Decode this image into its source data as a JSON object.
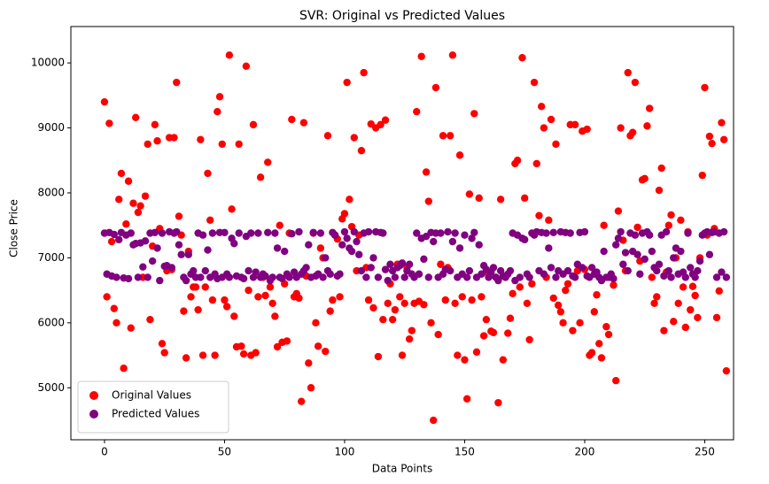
{
  "chart_data": {
    "type": "scatter",
    "title": "SVR: Original vs Predicted Values",
    "x_label": "Data Points",
    "y_label": "Close Price",
    "x": [
      0,
      1,
      2,
      3,
      4,
      5,
      6,
      7,
      8,
      9,
      10,
      11,
      12,
      13,
      14,
      15,
      16,
      17,
      18,
      19,
      20,
      21,
      22,
      23,
      24,
      25,
      26,
      27,
      28,
      29,
      30,
      31,
      32,
      33,
      34,
      35,
      36,
      37,
      38,
      39,
      40,
      41,
      42,
      43,
      44,
      45,
      46,
      47,
      48,
      49,
      50,
      51,
      52,
      53,
      54,
      55,
      56,
      57,
      58,
      59,
      60,
      61,
      62,
      63,
      64,
      65,
      66,
      67,
      68,
      69,
      70,
      71,
      72,
      73,
      74,
      75,
      76,
      77,
      78,
      79,
      80,
      81,
      82,
      83,
      84,
      85,
      86,
      87,
      88,
      89,
      90,
      91,
      92,
      93,
      94,
      95,
      96,
      97,
      98,
      99,
      100,
      101,
      102,
      103,
      104,
      105,
      106,
      107,
      108,
      109,
      110,
      111,
      112,
      113,
      114,
      115,
      116,
      117,
      118,
      119,
      120,
      121,
      122,
      123,
      124,
      125,
      126,
      127,
      128,
      129,
      130,
      131,
      132,
      133,
      134,
      135,
      136,
      137,
      138,
      139,
      140,
      141,
      142,
      143,
      144,
      145,
      146,
      147,
      148,
      149,
      150,
      151,
      152,
      153,
      154,
      155,
      156,
      157,
      158,
      159,
      160,
      161,
      162,
      163,
      164,
      165,
      166,
      167,
      168,
      169,
      170,
      171,
      172,
      173,
      174,
      175,
      176,
      177,
      178,
      179,
      180,
      181,
      182,
      183,
      184,
      185,
      186,
      187,
      188,
      189,
      190,
      191,
      192,
      193,
      194,
      195,
      196,
      197,
      198,
      199,
      200,
      201,
      202,
      203,
      204,
      205,
      206,
      207,
      208,
      209,
      210,
      211,
      212,
      213,
      214,
      215,
      216,
      217,
      218,
      219,
      220,
      221,
      222,
      223,
      224,
      225,
      226,
      227,
      228,
      229,
      230,
      231,
      232,
      233,
      234,
      235,
      236,
      237,
      238,
      239,
      240,
      241,
      242,
      243,
      244,
      245,
      246,
      247,
      248,
      249,
      250,
      251,
      252,
      253,
      254,
      255,
      256,
      257,
      258,
      259
    ],
    "series": [
      {
        "name": "Original Values",
        "color": "#ff0000",
        "values": [
          9400,
          6400,
          9070,
          7250,
          6220,
          6000,
          7900,
          8300,
          5300,
          7520,
          8180,
          5920,
          7840,
          9160,
          7700,
          7800,
          6700,
          7950,
          8750,
          6050,
          7180,
          9050,
          8800,
          7450,
          5680,
          5540,
          6800,
          8850,
          6820,
          8850,
          9700,
          7640,
          7350,
          6180,
          5460,
          7100,
          6400,
          6550,
          6550,
          6200,
          8820,
          5500,
          6550,
          8300,
          7580,
          6350,
          5500,
          9250,
          9480,
          8750,
          6350,
          6250,
          10120,
          7750,
          6100,
          5630,
          8750,
          5640,
          5520,
          9950,
          6500,
          5500,
          9050,
          5540,
          6400,
          8240,
          6700,
          6420,
          8470,
          6550,
          6300,
          6100,
          5630,
          7500,
          5700,
          6600,
          5720,
          7380,
          9130,
          6400,
          6450,
          6380,
          4790,
          9080,
          6720,
          5380,
          5000,
          7380,
          6000,
          5640,
          7150,
          7000,
          5560,
          8880,
          6180,
          6350,
          7350,
          7290,
          6400,
          7600,
          7680,
          9700,
          7900,
          7480,
          8850,
          6800,
          7350,
          8650,
          9850,
          6850,
          6350,
          9060,
          6230,
          9000,
          5480,
          9050,
          6050,
          9120,
          6300,
          6600,
          6050,
          6200,
          6900,
          6400,
          5500,
          6300,
          6850,
          5750,
          5880,
          6300,
          9250,
          6330,
          10100,
          6280,
          8320,
          7870,
          6000,
          4500,
          9620,
          5820,
          6900,
          8880,
          6350,
          6850,
          8880,
          10120,
          6300,
          5500,
          8580,
          6400,
          5430,
          4830,
          7980,
          6350,
          9220,
          5550,
          7920,
          6400,
          5800,
          6050,
          6750,
          5870,
          5850,
          6700,
          4770,
          7900,
          5430,
          6700,
          5840,
          6070,
          6450,
          8450,
          8500,
          6550,
          10080,
          7920,
          6300,
          5740,
          6600,
          9700,
          8450,
          7650,
          9330,
          9000,
          6700,
          7580,
          9130,
          6380,
          8750,
          6270,
          6170,
          6000,
          6500,
          6600,
          9050,
          5880,
          9050,
          6800,
          6000,
          8950,
          6820,
          8980,
          5500,
          5540,
          6170,
          6430,
          5680,
          5460,
          7500,
          5940,
          5820,
          6700,
          6580,
          5110,
          7720,
          9000,
          7270,
          6800,
          9850,
          8880,
          8930,
          9700,
          7470,
          6950,
          8200,
          8220,
          9030,
          9300,
          6700,
          6300,
          6400,
          8040,
          8380,
          5880,
          6780,
          7500,
          7660,
          6020,
          7000,
          6300,
          7580,
          6550,
          5930,
          7400,
          6200,
          6560,
          6420,
          6080,
          7000,
          8270,
          9620,
          7350,
          8870,
          8760,
          7450,
          6080,
          6490,
          9080,
          8820,
          5260
        ]
      },
      {
        "name": "Predicted Values",
        "color": "#800080",
        "values": [
          7380,
          6750,
          7390,
          6720,
          7360,
          6700,
          7280,
          7390,
          6690,
          7350,
          6680,
          7380,
          7200,
          7220,
          6700,
          7230,
          6860,
          7260,
          6700,
          7380,
          6950,
          7390,
          7150,
          6650,
          7380,
          6870,
          6880,
          7400,
          6850,
          7380,
          7400,
          7200,
          7050,
          6700,
          6650,
          7050,
          6750,
          6800,
          6700,
          7380,
          6700,
          7350,
          6800,
          7120,
          6700,
          7380,
          6750,
          6680,
          7390,
          6700,
          7390,
          6750,
          6700,
          7300,
          7220,
          6720,
          7380,
          6700,
          6680,
          7330,
          6800,
          7380,
          6700,
          6780,
          7380,
          6700,
          6750,
          6720,
          7390,
          6650,
          6700,
          7380,
          7150,
          6700,
          6680,
          7100,
          6750,
          6700,
          7370,
          6780,
          6700,
          7400,
          6750,
          6800,
          6850,
          7200,
          6700,
          7390,
          6720,
          6750,
          7380,
          6700,
          7000,
          6800,
          6750,
          7390,
          7350,
          6720,
          6750,
          7200,
          7400,
          7300,
          7150,
          7100,
          7400,
          7250,
          7050,
          6800,
          7380,
          6700,
          7400,
          6850,
          7000,
          7400,
          6700,
          7390,
          7380,
          6820,
          6650,
          6900,
          6800,
          6700,
          6850,
          6880,
          6920,
          6700,
          6800,
          6900,
          6750,
          6700,
          7380,
          6750,
          7300,
          6980,
          7330,
          6700,
          7390,
          7250,
          7380,
          6700,
          7380,
          6750,
          6820,
          7400,
          6800,
          7250,
          7380,
          6700,
          7150,
          6750,
          7350,
          6700,
          6800,
          7300,
          7390,
          6700,
          7200,
          6750,
          6880,
          6820,
          6700,
          6780,
          6850,
          6700,
          6650,
          6800,
          6720,
          6700,
          6750,
          6800,
          7380,
          6650,
          7350,
          6700,
          7300,
          7280,
          6750,
          6700,
          7380,
          7350,
          7400,
          6800,
          7390,
          6750,
          7380,
          7150,
          6850,
          7390,
          6700,
          6800,
          7400,
          6750,
          7390,
          6800,
          7380,
          6720,
          6700,
          6900,
          7390,
          6850,
          7400,
          6720,
          6700,
          6850,
          6750,
          6780,
          6700,
          6650,
          7100,
          6700,
          6700,
          6750,
          6680,
          7200,
          7300,
          7400,
          6900,
          7080,
          6800,
          7380,
          7100,
          7350,
          7050,
          6750,
          7380,
          6980,
          7400,
          7350,
          7100,
          6850,
          6800,
          6900,
          7350,
          6720,
          7400,
          6800,
          6700,
          7000,
          7150,
          6750,
          7100,
          6780,
          6700,
          7380,
          6850,
          6750,
          6700,
          6800,
          6950,
          7350,
          7380,
          7400,
          7050,
          7390,
          7400,
          6700,
          7380,
          6780,
          7400,
          6700
        ]
      }
    ],
    "xlim": [
      -14,
      262
    ],
    "ylim": [
      4200,
      10560
    ],
    "xticks": [
      0,
      50,
      100,
      150,
      200,
      250
    ],
    "yticks": [
      5000,
      6000,
      7000,
      8000,
      9000,
      10000
    ],
    "legend": "lower left"
  }
}
